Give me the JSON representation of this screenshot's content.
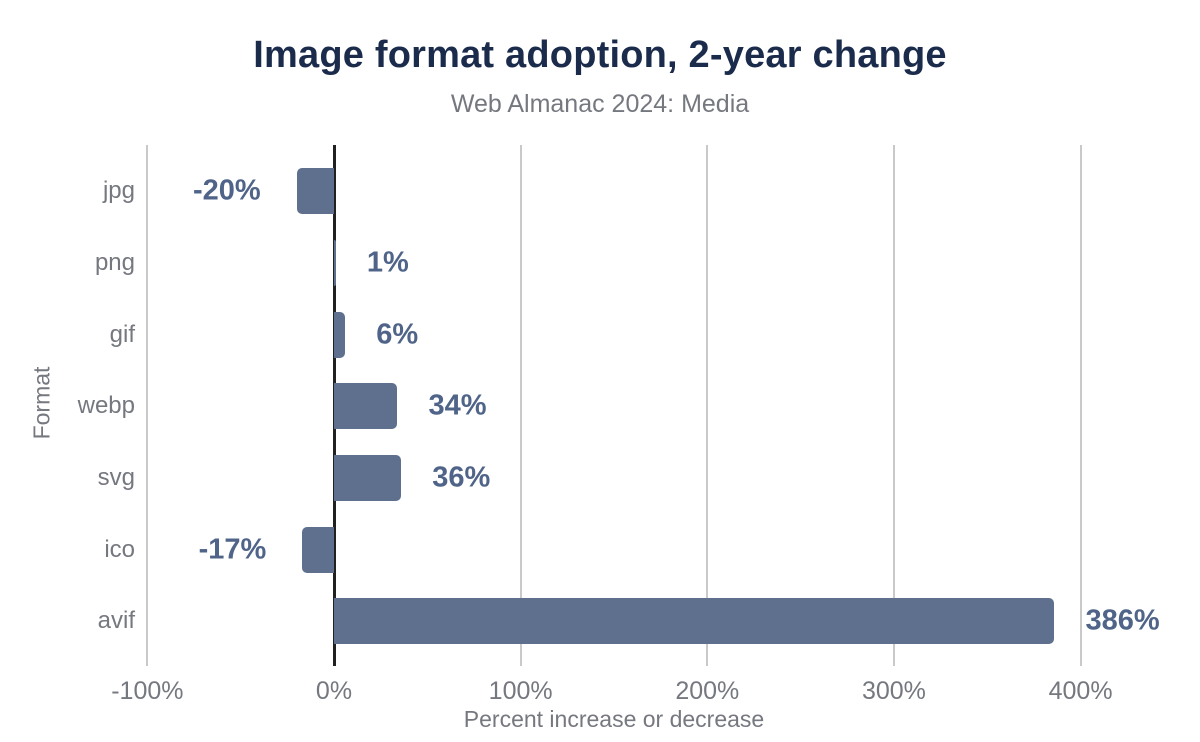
{
  "chart_data": {
    "type": "bar",
    "orientation": "horizontal",
    "title": "Image format adoption, 2-year change",
    "subtitle": "Web Almanac 2024: Media",
    "categories": [
      "jpg",
      "png",
      "gif",
      "webp",
      "svg",
      "ico",
      "avif"
    ],
    "values": [
      -20,
      1,
      6,
      34,
      36,
      -17,
      386
    ],
    "value_labels": [
      "-20%",
      "1%",
      "6%",
      "34%",
      "36%",
      "-17%",
      "386%"
    ],
    "xlabel": "Percent increase or decrease",
    "ylabel": "Format",
    "xlim": [
      -100,
      450
    ],
    "x_ticks": [
      -100,
      0,
      100,
      200,
      300,
      400
    ],
    "x_tick_labels": [
      "-100%",
      "0%",
      "100%",
      "200%",
      "300%",
      "400%"
    ],
    "grid": "vertical-only",
    "legend": "none",
    "colors": {
      "bar": "#5e708e",
      "value_label": "#4f6488",
      "title": "#1b2b4b",
      "subtitle": "#75787f",
      "axis_text": "#75787f",
      "gridline": "#c9c9c9",
      "zero_line": "#212121",
      "background": "#ffffff"
    }
  }
}
